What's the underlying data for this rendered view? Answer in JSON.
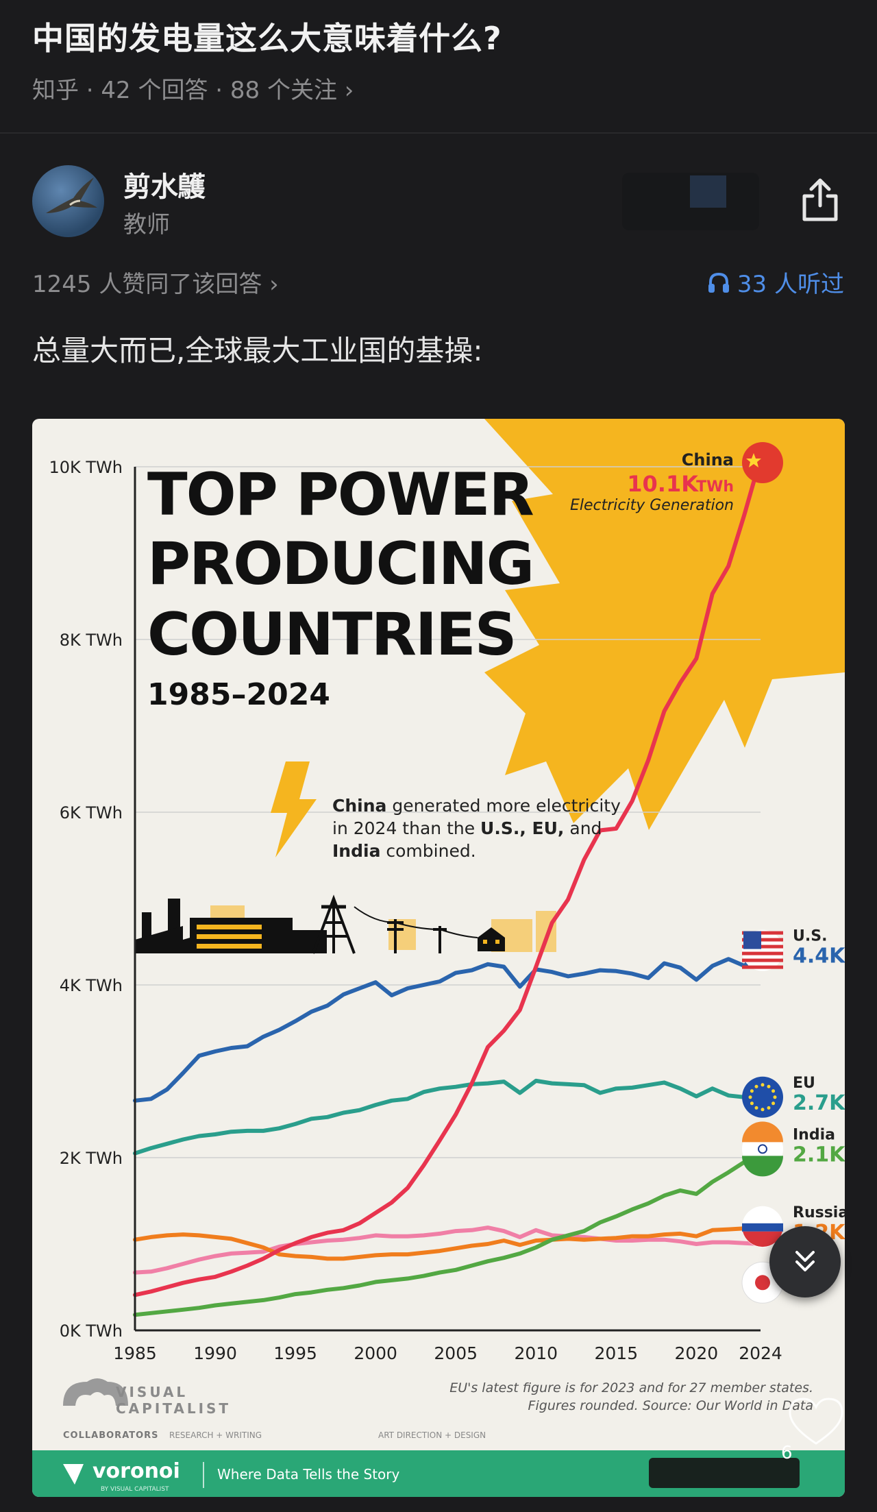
{
  "question": {
    "title": "中国的发电量这么大意味着什么?",
    "meta": "知乎 · 42 个回答 · 88 个关注 ›"
  },
  "author": {
    "name": "剪水鸌",
    "title": "教师"
  },
  "answer": {
    "likes_text": "1245 人赞同了该回答 ›",
    "listen_text": "33 人听过",
    "text": "总量大而已,全球最大工业国的基操:",
    "like_count": "6"
  },
  "icons": {
    "share": "share-icon",
    "headphones": "headphones-icon",
    "scroll_down": "double-chevron-down-icon",
    "heart": "heart-icon"
  },
  "colors": {
    "china": "#e8344e",
    "us": "#2a64ad",
    "eu": "#2a9e8c",
    "india": "#53a843",
    "russia": "#f07d1d",
    "japan": "#f07fa6",
    "sun": "#f5b51f",
    "link_blue": "#4f8ee8",
    "footer_green": "#2aa776"
  },
  "infographic": {
    "title_lines": [
      "TOP POWER",
      "PRODUCING",
      "COUNTRIES"
    ],
    "years": "1985–2024",
    "callout_lines": [
      {
        "bold": "China",
        "rest": " generated more electricity"
      },
      {
        "pre": "in 2024 than the ",
        "bold": "U.S., EU,",
        "rest": " and"
      },
      {
        "bold": "India",
        "rest": " combined."
      }
    ],
    "china_label": "China",
    "china_value": "10.1K",
    "china_unit": "TWh",
    "china_caption": "Electricity Generation",
    "note_line1": "EU's latest figure is for 2023 and for 27 member states.",
    "note_line2": "Figures rounded. Source: Our World in Data",
    "brand_line1": "VISUAL",
    "brand_line2": "CAPITALIST",
    "collaborators": "COLLABORATORS",
    "research": "RESEARCH + WRITING",
    "art": "ART DIRECTION + DESIGN",
    "footer_brand": "voronoi",
    "footer_sub": "BY VISUAL CAPITALIST",
    "footer_tag": "Where Data Tells the Story"
  },
  "chart_data": {
    "type": "line",
    "title": "TOP POWER PRODUCING COUNTRIES",
    "subtitle": "1985–2024",
    "ylabel": "",
    "y_ticks": [
      "0K TWh",
      "2K TWh",
      "4K TWh",
      "6K TWh",
      "8K TWh",
      "10K TWh"
    ],
    "x_ticks": [
      "1985",
      "1990",
      "1995",
      "2000",
      "2005",
      "2010",
      "2015",
      "2020",
      "2024"
    ],
    "ylim": [
      0,
      10000
    ],
    "xlim": [
      1985,
      2024
    ],
    "x": [
      1985,
      1986,
      1987,
      1988,
      1989,
      1990,
      1991,
      1992,
      1993,
      1994,
      1995,
      1996,
      1997,
      1998,
      1999,
      2000,
      2001,
      2002,
      2003,
      2004,
      2005,
      2006,
      2007,
      2008,
      2009,
      2010,
      2011,
      2012,
      2013,
      2014,
      2015,
      2016,
      2017,
      2018,
      2019,
      2020,
      2021,
      2022,
      2023,
      2024
    ],
    "series": [
      {
        "name": "China",
        "value_label": "10.1K",
        "color": "#e8344e",
        "values": [
          410,
          450,
          500,
          550,
          590,
          620,
          680,
          750,
          830,
          930,
          1010,
          1080,
          1130,
          1160,
          1240,
          1360,
          1480,
          1650,
          1910,
          2200,
          2500,
          2860,
          3280,
          3470,
          3710,
          4210,
          4720,
          4990,
          5450,
          5790,
          5810,
          6130,
          6600,
          7170,
          7500,
          7780,
          8530,
          8850,
          9450,
          10100
        ]
      },
      {
        "name": "U.S.",
        "value_label": "4.4K",
        "color": "#2a64ad",
        "values": [
          2660,
          2680,
          2790,
          2980,
          3180,
          3230,
          3270,
          3290,
          3400,
          3480,
          3580,
          3690,
          3760,
          3890,
          3960,
          4030,
          3880,
          3960,
          4000,
          4040,
          4140,
          4170,
          4240,
          4210,
          3980,
          4180,
          4150,
          4100,
          4130,
          4170,
          4160,
          4130,
          4080,
          4250,
          4200,
          4060,
          4220,
          4300,
          4220,
          4400
        ]
      },
      {
        "name": "EU",
        "value_label": "2.7K",
        "color": "#2a9e8c",
        "values": [
          2050,
          2110,
          2160,
          2210,
          2250,
          2270,
          2300,
          2310,
          2310,
          2340,
          2390,
          2450,
          2470,
          2520,
          2550,
          2610,
          2660,
          2680,
          2760,
          2800,
          2820,
          2850,
          2860,
          2880,
          2750,
          2890,
          2860,
          2850,
          2840,
          2750,
          2800,
          2810,
          2840,
          2870,
          2800,
          2710,
          2800,
          2720,
          2700,
          2700
        ]
      },
      {
        "name": "India",
        "value_label": "2.1K",
        "color": "#53a843",
        "values": [
          180,
          200,
          220,
          240,
          260,
          290,
          310,
          330,
          350,
          380,
          420,
          440,
          470,
          490,
          520,
          560,
          580,
          600,
          630,
          670,
          700,
          750,
          800,
          840,
          890,
          960,
          1050,
          1100,
          1150,
          1250,
          1320,
          1400,
          1470,
          1560,
          1620,
          1580,
          1720,
          1830,
          1950,
          2100
        ]
      },
      {
        "name": "Russia",
        "value_label": "1.2K",
        "color": "#f07d1d",
        "values": [
          1050,
          1080,
          1100,
          1110,
          1100,
          1080,
          1060,
          1010,
          960,
          880,
          860,
          850,
          830,
          830,
          850,
          870,
          880,
          880,
          900,
          920,
          950,
          980,
          1000,
          1040,
          990,
          1040,
          1050,
          1060,
          1050,
          1060,
          1070,
          1090,
          1090,
          1110,
          1120,
          1090,
          1160,
          1170,
          1180,
          1200
        ]
      },
      {
        "name": "Japan",
        "value_label": "",
        "color": "#f07fa6",
        "values": [
          670,
          680,
          720,
          770,
          820,
          860,
          890,
          900,
          910,
          970,
          1000,
          1020,
          1040,
          1050,
          1070,
          1100,
          1090,
          1090,
          1100,
          1120,
          1150,
          1160,
          1190,
          1150,
          1080,
          1160,
          1100,
          1090,
          1080,
          1060,
          1040,
          1040,
          1050,
          1050,
          1030,
          1000,
          1020,
          1020,
          1010,
          1000
        ]
      }
    ],
    "grid": true,
    "legend": "right-end labels"
  }
}
